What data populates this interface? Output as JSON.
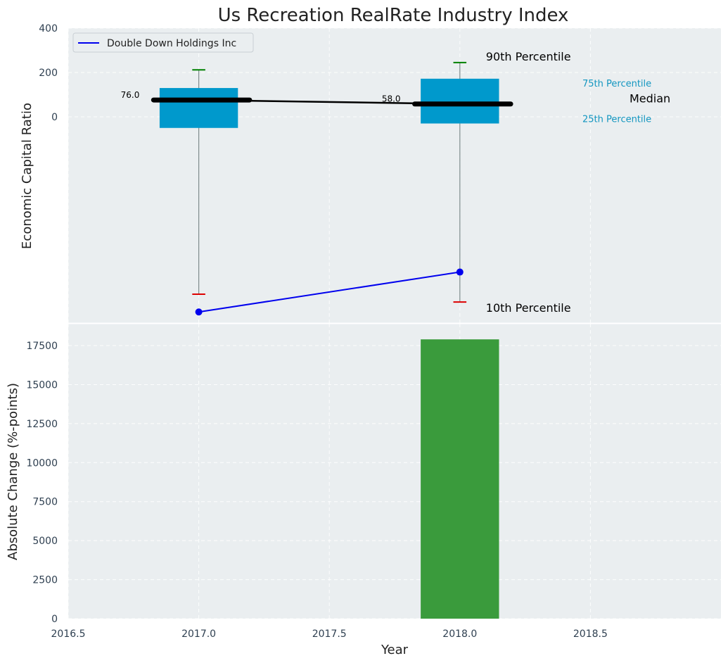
{
  "chart_data": [
    {
      "type": "box",
      "title": "Us Recreation RealRate Industry Index",
      "ylabel": "Economic Capital Ratio",
      "xlim": [
        2016.5,
        2019.0
      ],
      "ylim": [
        -930,
        400
      ],
      "y_ticks": [
        400,
        200,
        0
      ],
      "grid": true,
      "legend": {
        "position": "top-left",
        "entries": [
          "Double Down Holdings Inc"
        ]
      },
      "boxes": [
        {
          "x": 2017.0,
          "p10": -800,
          "p25": -50,
          "median": 76,
          "p75": 130,
          "p90": 212,
          "median_label": "76.0"
        },
        {
          "x": 2018.0,
          "p10": -835,
          "p25": -30,
          "median": 58,
          "p75": 172,
          "p90": 245,
          "median_label": "58.0"
        }
      ],
      "series": [
        {
          "name": "Double Down Holdings Inc",
          "color": "#0000ee",
          "x": [
            2017.0,
            2018.0
          ],
          "y": [
            -880,
            -700
          ]
        }
      ],
      "annotations": {
        "p90": "90th Percentile",
        "p75": "75th Percentile",
        "median": "Median",
        "p25": "25th Percentile",
        "p10": "10th Percentile"
      }
    },
    {
      "type": "bar",
      "ylabel": "Absolute Change (%-points)",
      "xlabel": "Year",
      "xlim": [
        2016.5,
        2019.0
      ],
      "ylim": [
        0,
        18900
      ],
      "x_ticks": [
        2016.5,
        2017.0,
        2017.5,
        2018.0,
        2018.5
      ],
      "y_ticks": [
        0,
        2500,
        5000,
        7500,
        10000,
        12500,
        15000,
        17500
      ],
      "grid": true,
      "bars": [
        {
          "x": 2018.0,
          "value": 17900,
          "color": "#3a9b3c"
        }
      ]
    }
  ],
  "colors": {
    "panel_bg": "#eaeef0",
    "box_fill": "#0099cc",
    "median_line": "#000000",
    "whisker_high": "#008000",
    "whisker_low": "#dd0000",
    "whisker_line": "#7f8c8d"
  }
}
